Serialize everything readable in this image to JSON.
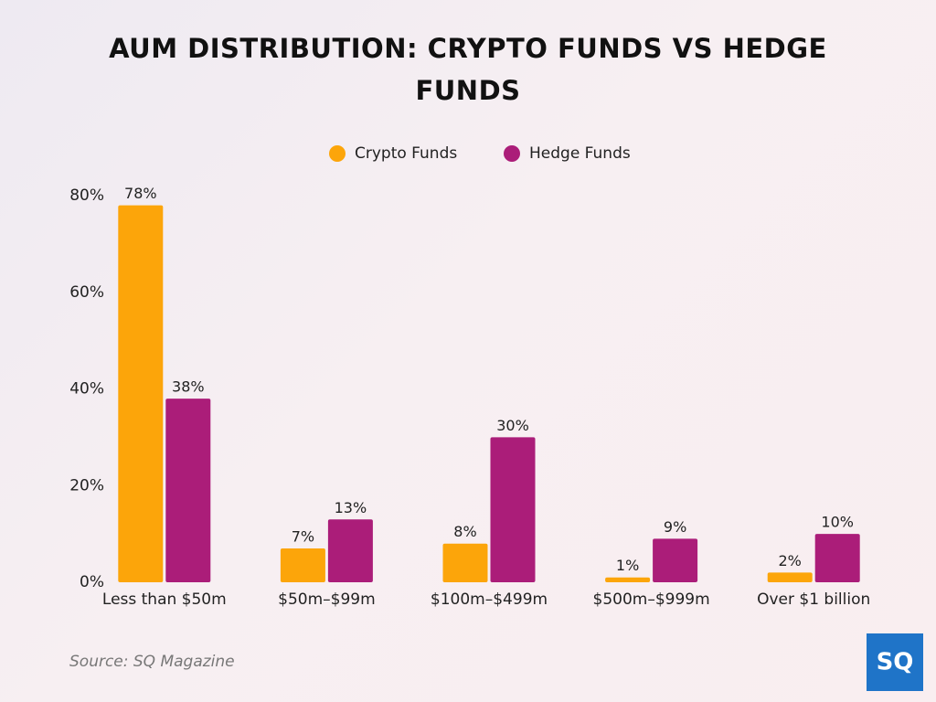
{
  "chart_data": {
    "type": "bar",
    "title": "AUM DISTRIBUTION: CRYPTO FUNDS VS HEDGE FUNDS",
    "categories": [
      "Less than $50m",
      "$50m–$99m",
      "$100m–$499m",
      "$500m–$999m",
      "Over $1 billion"
    ],
    "series": [
      {
        "name": "Crypto Funds",
        "color": "#fca50a",
        "values": [
          78,
          7,
          8,
          1,
          2
        ],
        "value_labels": [
          "78%",
          "7%",
          "8%",
          "1%",
          "2%"
        ]
      },
      {
        "name": "Hedge Funds",
        "color": "#ab1d79",
        "values": [
          38,
          13,
          30,
          9,
          10
        ],
        "value_labels": [
          "38%",
          "13%",
          "30%",
          "9%",
          "10%"
        ]
      }
    ],
    "ylim": [
      0,
      80
    ],
    "yticks": [
      {
        "value": 0,
        "label": "0%"
      },
      {
        "value": 20,
        "label": "20%"
      },
      {
        "value": 40,
        "label": "40%"
      },
      {
        "value": 60,
        "label": "60%"
      },
      {
        "value": 80,
        "label": "80%"
      }
    ],
    "legend": "top",
    "source": "Source: SQ Magazine",
    "logo": "SQ"
  }
}
